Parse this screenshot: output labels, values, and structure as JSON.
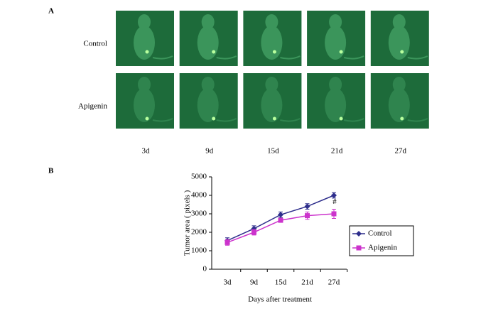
{
  "panel_a": {
    "label": "A",
    "rows": [
      "Control",
      "Apigenin"
    ],
    "columns": [
      "3d",
      "9d",
      "15d",
      "21d",
      "27d"
    ]
  },
  "chart_data": {
    "type": "line",
    "panel_label": "B",
    "x_label": "Days after treatment",
    "y_label": "Tumor area ( pixels )",
    "categories": [
      "3d",
      "9d",
      "15d",
      "21d",
      "27d"
    ],
    "series": [
      {
        "name": "Control",
        "color": "#2e2e8c",
        "marker": "diamond",
        "values": [
          1550,
          2200,
          2950,
          3400,
          4000
        ],
        "errors": [
          150,
          150,
          150,
          150,
          150
        ]
      },
      {
        "name": "Apigenin",
        "color": "#cc33cc",
        "marker": "square",
        "values": [
          1450,
          2000,
          2650,
          2900,
          3000
        ],
        "errors": [
          150,
          150,
          100,
          200,
          250
        ]
      }
    ],
    "annotation": "#",
    "ylim": [
      0,
      5000
    ],
    "yticks": [
      0,
      1000,
      2000,
      3000,
      4000,
      5000
    ],
    "grid": false,
    "legend_position": "right"
  }
}
